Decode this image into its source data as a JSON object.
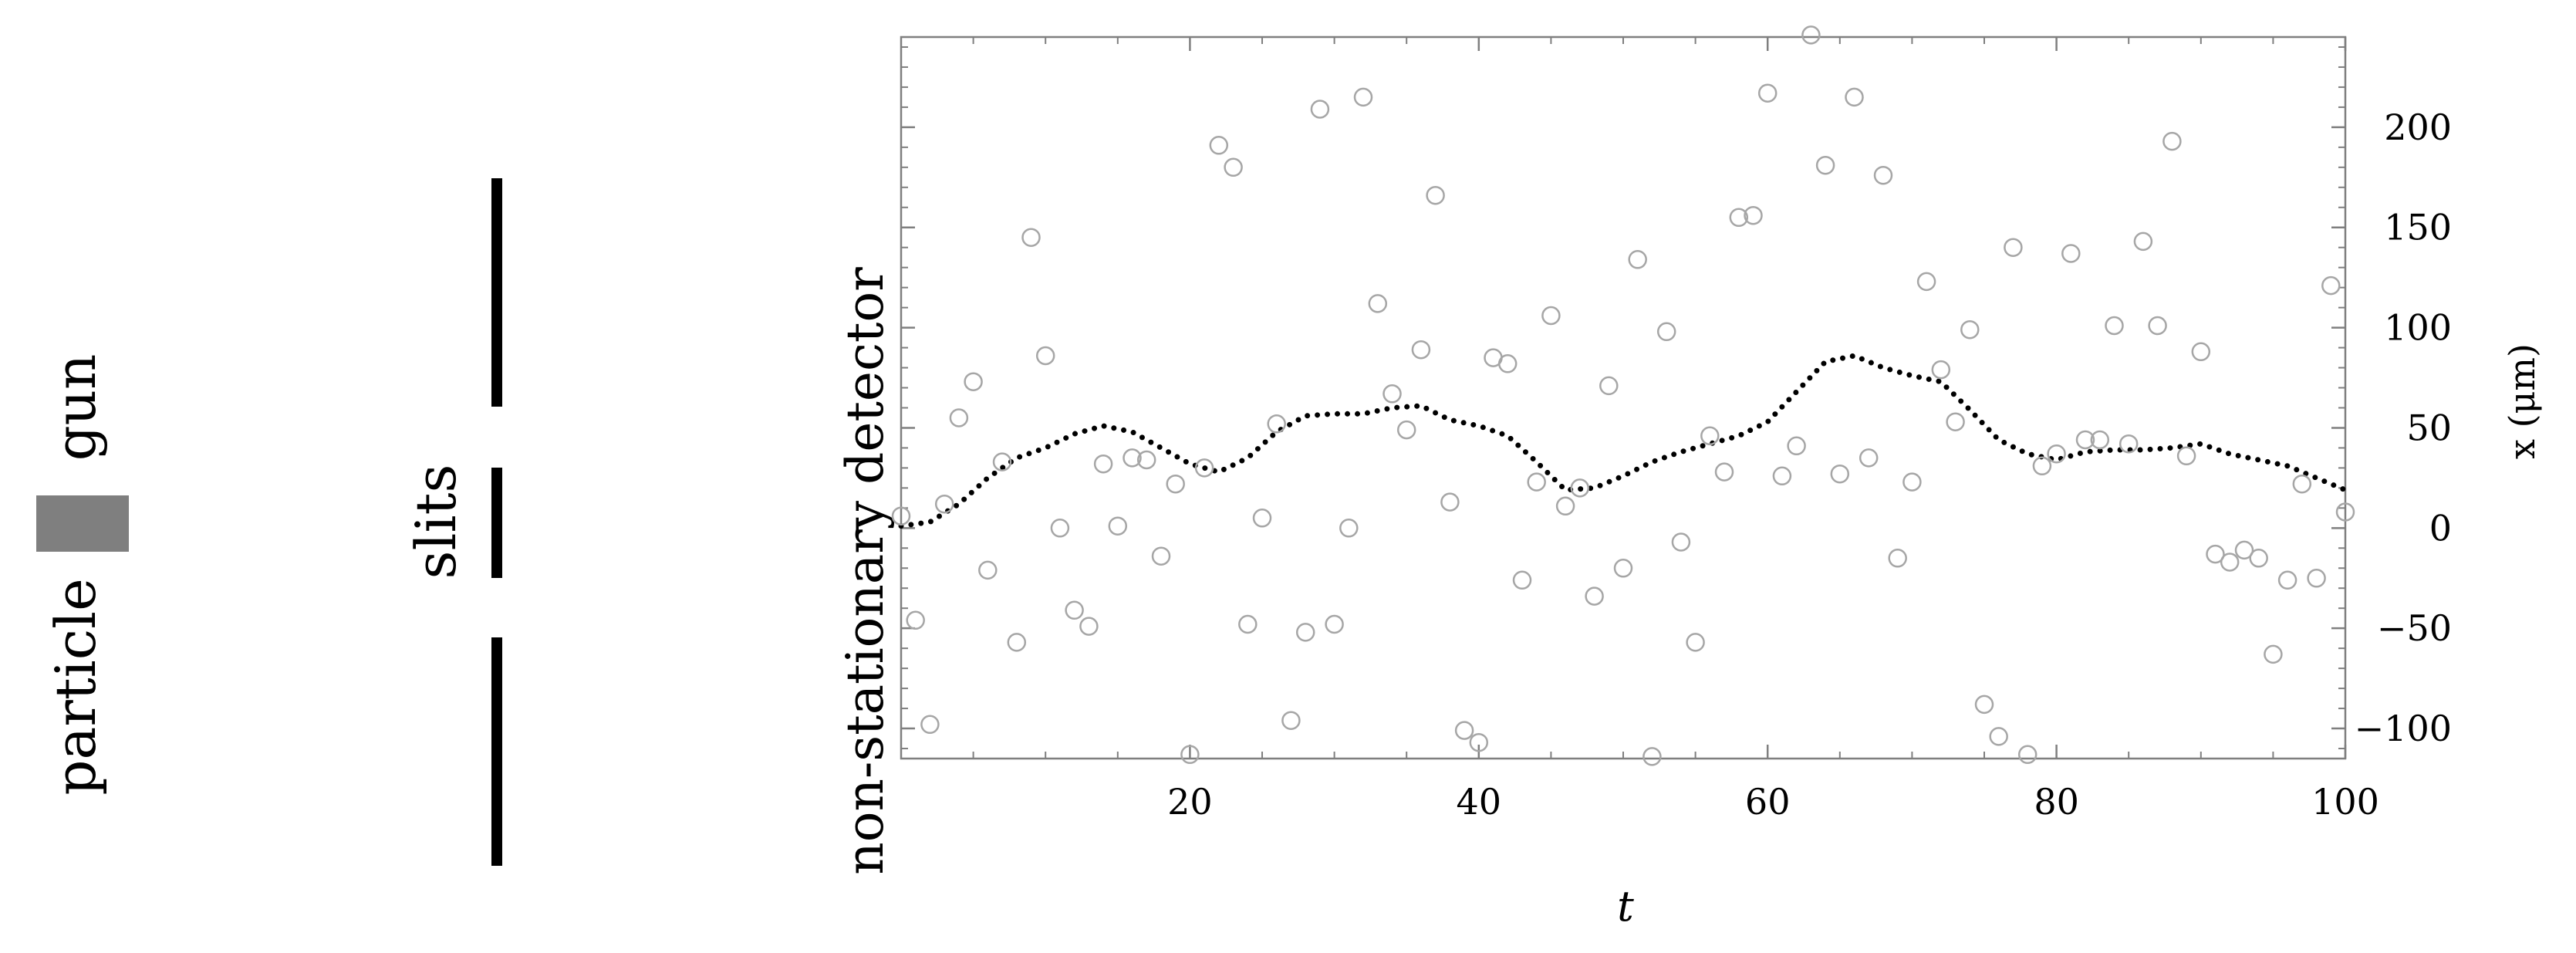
{
  "apparatus": {
    "source_label_line1": "particle",
    "source_label_line2": "gun",
    "slits_label": "slits",
    "detector_label": "non-stationary detector",
    "gun_color": "#7f7f7f",
    "slit_color": "#000000"
  },
  "chart_data": {
    "type": "scatter",
    "xlabel": "t",
    "ylabel": "x (μm)",
    "xlim": [
      0,
      100
    ],
    "ylim": [
      -115,
      245
    ],
    "x_ticks": [
      20,
      40,
      60,
      80,
      100
    ],
    "y_ticks": [
      -100,
      -50,
      0,
      50,
      100,
      150,
      200
    ],
    "y_axis_side": "right",
    "grid": false,
    "series": [
      {
        "kind": "points",
        "marker": "open-circle",
        "color": "#a6a6a6",
        "x": [
          0,
          1,
          2,
          3,
          4,
          5,
          6,
          7,
          8,
          9,
          10,
          11,
          12,
          13,
          14,
          15,
          16,
          17,
          18,
          19,
          20,
          21,
          22,
          23,
          24,
          25,
          26,
          27,
          28,
          29,
          30,
          31,
          32,
          33,
          34,
          35,
          36,
          37,
          38,
          39,
          40,
          41,
          42,
          43,
          44,
          45,
          46,
          47,
          48,
          49,
          50,
          51,
          52,
          53,
          54,
          55,
          56,
          57,
          58,
          59,
          60,
          61,
          62,
          63,
          64,
          65,
          66,
          67,
          68,
          69,
          70,
          71,
          72,
          73,
          74,
          75,
          76,
          77,
          78,
          79,
          80,
          81,
          82,
          83,
          84,
          85,
          86,
          87,
          88,
          89,
          90,
          91,
          92,
          93,
          94,
          95,
          96,
          97,
          98,
          99,
          100
        ],
        "y": [
          6,
          -46,
          -98,
          12,
          55,
          73,
          -21,
          33,
          -57,
          145,
          86,
          0,
          -41,
          -49,
          32,
          1,
          35,
          34,
          -14,
          22,
          -113,
          30,
          191,
          180,
          -48,
          5,
          52,
          -96,
          -52,
          209,
          -48,
          0,
          215,
          112,
          67,
          49,
          89,
          166,
          13,
          -101,
          -107,
          85,
          82,
          -26,
          23,
          106,
          11,
          20,
          -34,
          71,
          -20,
          134,
          -114,
          98,
          -7,
          -57,
          46,
          28,
          155,
          156,
          217,
          26,
          41,
          246,
          181,
          27,
          215,
          35,
          176,
          -15,
          23,
          123,
          79,
          53,
          99,
          -88,
          -104,
          140,
          -113,
          31,
          37,
          137,
          44,
          44,
          101,
          42,
          143,
          101,
          193,
          36,
          88,
          -13,
          -17,
          -11,
          -15,
          -63,
          -26,
          22,
          -25,
          121,
          8
        ]
      },
      {
        "kind": "line",
        "style": "dotted",
        "color": "#000000",
        "x": [
          0,
          2,
          4,
          6,
          8,
          10,
          12,
          14,
          16,
          18,
          20,
          22,
          24,
          26,
          28,
          30,
          32,
          34,
          36,
          38,
          40,
          42,
          44,
          46,
          48,
          50,
          52,
          54,
          56,
          58,
          60,
          62,
          64,
          66,
          68,
          70,
          72,
          74,
          76,
          78,
          80,
          82,
          84,
          86,
          88,
          90,
          92,
          94,
          96,
          98,
          100
        ],
        "y": [
          1,
          3,
          12,
          25,
          35,
          40,
          47,
          51,
          48,
          40,
          32,
          28,
          35,
          48,
          56,
          57,
          57,
          60,
          61,
          54,
          51,
          46,
          33,
          19,
          20,
          26,
          33,
          38,
          42,
          46,
          53,
          68,
          83,
          86,
          80,
          76,
          73,
          59,
          44,
          37,
          34,
          38,
          39,
          39,
          40,
          42,
          37,
          34,
          31,
          25,
          19
        ]
      }
    ]
  }
}
